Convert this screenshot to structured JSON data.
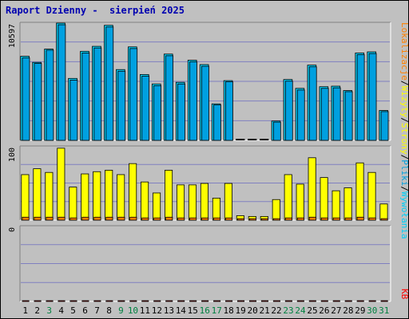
{
  "colors": {
    "background": "#c0c0c0",
    "grid": "#8080c0",
    "hits": "#00d0f8",
    "files": "#00a0e0",
    "pages": "#ffff00",
    "sites": "#ff8000",
    "kbytes": "#ff0000",
    "title": "#0000b0",
    "weekend_day": "#008040",
    "weekday": "#000000"
  },
  "chart_data": {
    "type": "bar",
    "title": "Raport Dzienny -  sierpień 2025",
    "categories": [
      "1",
      "2",
      "3",
      "4",
      "5",
      "6",
      "7",
      "8",
      "9",
      "10",
      "11",
      "12",
      "13",
      "14",
      "15",
      "16",
      "17",
      "18",
      "19",
      "20",
      "21",
      "22",
      "23",
      "24",
      "25",
      "26",
      "27",
      "28",
      "29",
      "30",
      "31"
    ],
    "weekend_days": [
      "3",
      "9",
      "10",
      "16",
      "17",
      "23",
      "24",
      "30",
      "31"
    ],
    "panels": [
      {
        "name": "top",
        "y_max_label": "10597",
        "ylim": [
          0,
          10597
        ],
        "grid": true,
        "series": [
          {
            "name": "Wywołania",
            "color": "#00d0f8",
            "values": [
              7600,
              7050,
              8250,
              10597,
              5600,
              8050,
              8500,
              10400,
              6400,
              8450,
              5950,
              5100,
              7800,
              5250,
              7250,
              6850,
              3300,
              5400,
              0,
              0,
              0,
              1750,
              5500,
              4700,
              6800,
              4850,
              4900,
              4500,
              7900,
              8000,
              2700
            ]
          },
          {
            "name": "Pliki",
            "color": "#00a0e0",
            "values": [
              7450,
              6950,
              8150,
              10450,
              5450,
              7900,
              8350,
              10250,
              6250,
              8300,
              5800,
              4950,
              7650,
              5100,
              7100,
              6700,
              3200,
              5300,
              0,
              0,
              0,
              1650,
              5350,
              4550,
              6650,
              4700,
              4750,
              4400,
              7750,
              7850,
              2600
            ]
          }
        ]
      },
      {
        "name": "middle",
        "y_max_label": "100",
        "ylim": [
          0,
          100
        ],
        "grid": true,
        "series": [
          {
            "name": "Strony",
            "color": "#ffff00",
            "values": [
              62,
              70,
              65,
              98,
              45,
              63,
              66,
              68,
              62,
              77,
              52,
              37,
              68,
              48,
              48,
              50,
              30,
              50,
              6,
              5,
              5,
              28,
              62,
              49,
              85,
              58,
              40,
              44,
              78,
              65,
              22
            ]
          },
          {
            "name": "Lokalizacje",
            "color": "#ff8000",
            "values": [
              4,
              4,
              4,
              4,
              3,
              4,
              4,
              4,
              4,
              4,
              3,
              3,
              4,
              3,
              3,
              3,
              3,
              3,
              2,
              2,
              2,
              2,
              3,
              3,
              4,
              3,
              3,
              3,
              4,
              3,
              2
            ]
          }
        ]
      },
      {
        "name": "bottom",
        "y_max_label": "0",
        "ylim": [
          0,
          1
        ],
        "grid": true,
        "series": [
          {
            "name": "KB",
            "color": "#ff0000",
            "values": [
              0,
              0,
              0,
              0,
              0,
              0,
              0,
              0,
              0,
              0,
              0,
              0,
              0,
              0,
              0,
              0,
              0,
              0,
              0,
              0,
              0,
              0,
              0,
              0,
              0,
              0,
              0,
              0,
              0,
              0,
              0
            ]
          }
        ]
      }
    ],
    "right_labels": [
      {
        "text": "Wywołania",
        "color": "#00d0f8"
      },
      {
        "text": "/",
        "color": "#000000"
      },
      {
        "text": "Pliki",
        "color": "#00a0e0"
      },
      {
        "text": "/",
        "color": "#000000"
      },
      {
        "text": "Strony",
        "color": "#ffff00"
      },
      {
        "text": "/",
        "color": "#000000"
      },
      {
        "text": "Wizyty",
        "color": "#ffff00"
      },
      {
        "text": "/",
        "color": "#000000"
      },
      {
        "text": "Lokalizacje",
        "color": "#ff8000"
      }
    ],
    "right_bottom_label": {
      "text": "KB",
      "color": "#ff0000"
    }
  }
}
